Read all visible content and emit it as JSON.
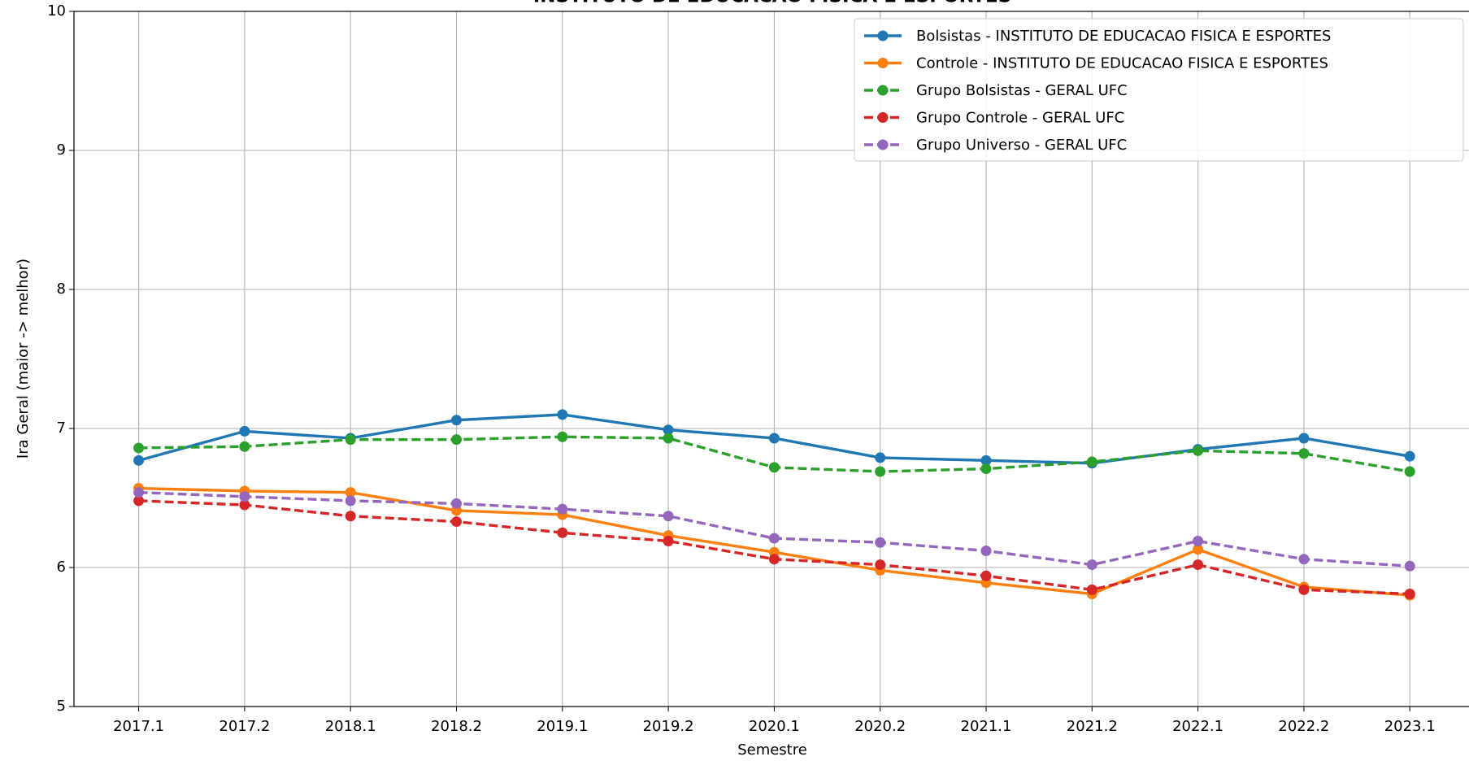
{
  "chart_data": {
    "type": "line",
    "title": "INSTITUTO DE EDUCACAO FISICA E ESPORTES",
    "x_label": "Semestre",
    "y_label": "Ira Geral (maior -> melhor)",
    "categories": [
      "2017.1",
      "2017.2",
      "2018.1",
      "2018.2",
      "2019.1",
      "2019.2",
      "2020.1",
      "2020.2",
      "2021.1",
      "2021.2",
      "2022.1",
      "2022.2",
      "2023.1"
    ],
    "ylim": [
      5,
      10
    ],
    "yticks": [
      5,
      6,
      7,
      8,
      9,
      10
    ],
    "grid": true,
    "legend": "upper right",
    "series": [
      {
        "name": "Bolsistas - INSTITUTO DE EDUCACAO FISICA E ESPORTES",
        "color": "#1f77b4",
        "linestyle": "solid",
        "values": [
          6.77,
          6.98,
          6.93,
          7.06,
          7.1,
          6.99,
          6.93,
          6.79,
          6.77,
          6.75,
          6.85,
          6.93,
          6.8
        ]
      },
      {
        "name": "Controle - INSTITUTO DE EDUCACAO FISICA E ESPORTES",
        "color": "#ff7f0e",
        "linestyle": "solid",
        "values": [
          6.57,
          6.55,
          6.54,
          6.41,
          6.38,
          6.23,
          6.11,
          5.98,
          5.89,
          5.81,
          6.13,
          5.86,
          5.8
        ]
      },
      {
        "name": "Grupo Bolsistas - GERAL UFC",
        "color": "#2ca02c",
        "linestyle": "dashed",
        "values": [
          6.86,
          6.87,
          6.92,
          6.92,
          6.94,
          6.93,
          6.72,
          6.69,
          6.71,
          6.76,
          6.84,
          6.82,
          6.69
        ]
      },
      {
        "name": "Grupo Controle - GERAL UFC",
        "color": "#d62728",
        "linestyle": "dashed",
        "values": [
          6.48,
          6.45,
          6.37,
          6.33,
          6.25,
          6.19,
          6.06,
          6.02,
          5.94,
          5.84,
          6.02,
          5.84,
          5.81
        ]
      },
      {
        "name": "Grupo Universo - GERAL UFC",
        "color": "#9467bd",
        "linestyle": "dashed",
        "values": [
          6.54,
          6.51,
          6.48,
          6.46,
          6.42,
          6.37,
          6.21,
          6.18,
          6.12,
          6.02,
          6.19,
          6.06,
          6.01
        ]
      }
    ]
  }
}
